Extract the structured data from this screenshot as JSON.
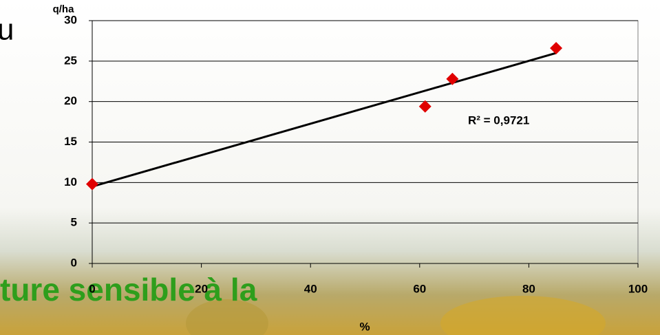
{
  "chart_data": {
    "type": "scatter",
    "y_label": "q/ha",
    "x_label": "%",
    "x": [
      0,
      61,
      66,
      85
    ],
    "values": [
      9.8,
      19.4,
      22.8,
      26.6
    ],
    "color": "#e00000",
    "trendline": {
      "x": [
        0,
        85
      ],
      "values": [
        9.5,
        26
      ],
      "color": "#000000"
    },
    "annotation": "R² = 0,9721",
    "xlim": [
      0,
      100
    ],
    "xticks": [
      0,
      20,
      40,
      60,
      80,
      100
    ],
    "ylim": [
      0,
      30
    ],
    "yticks": [
      0,
      5,
      10,
      15,
      20,
      25,
      30
    ],
    "grid": true
  },
  "background_text": {
    "heading_fragment": "u",
    "caption_fragment": "ture sensible à la"
  }
}
